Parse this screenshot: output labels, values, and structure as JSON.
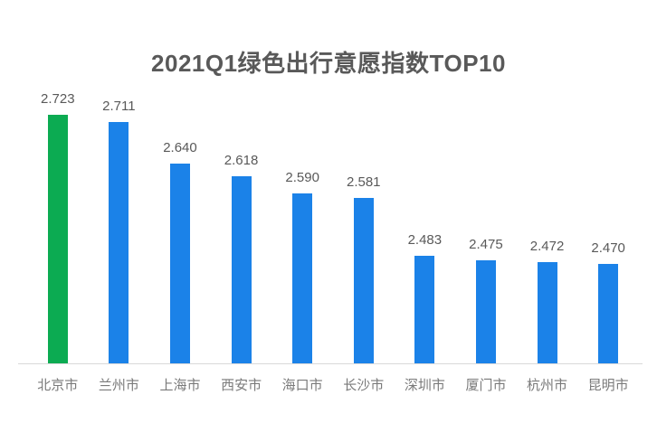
{
  "chart_data": {
    "type": "bar",
    "title": "2021Q1绿色出行意愿指数TOP10",
    "categories": [
      "北京市",
      "兰州市",
      "上海市",
      "西安市",
      "海口市",
      "长沙市",
      "深圳市",
      "厦门市",
      "杭州市",
      "昆明市"
    ],
    "values": [
      2.723,
      2.711,
      2.64,
      2.618,
      2.59,
      2.581,
      2.483,
      2.475,
      2.472,
      2.47
    ],
    "value_labels": [
      "2.723",
      "2.711",
      "2.640",
      "2.618",
      "2.590",
      "2.581",
      "2.483",
      "2.475",
      "2.472",
      "2.470"
    ],
    "xlabel": "",
    "ylabel": "",
    "ylim": [
      2.3,
      2.75
    ],
    "grid": false,
    "legend": false,
    "data_labels_shown": true,
    "bar_color": "#1b82e8",
    "highlight_color": "#0cab52",
    "highlight_index": 0
  },
  "colors": {
    "background": "#ffffff",
    "title_text": "#595959",
    "data_label_text": "#595959",
    "axis_label_text": "#7a7a7a",
    "axis_line": "#d9d9d9"
  }
}
